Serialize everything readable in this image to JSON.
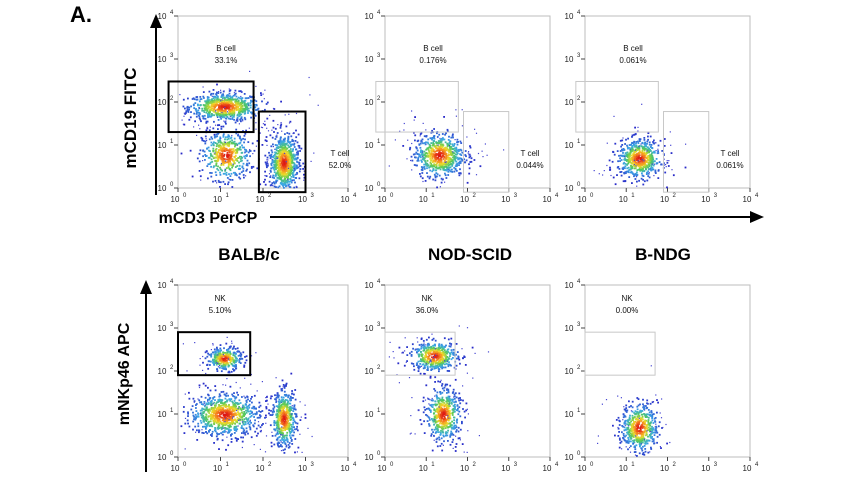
{
  "figure_label": "A.",
  "columns": [
    "BALB/c",
    "NOD-SCID",
    "B-NDG"
  ],
  "axis_labels": {
    "top_y": "mCD19 FITC",
    "top_x": "mCD3 PerCP",
    "bottom_y": "mNKp46 APC"
  },
  "tick_labels": {
    "bases": [
      "10",
      "10",
      "10",
      "10",
      "10"
    ],
    "exponents": [
      "0",
      "1",
      "2",
      "3",
      "4"
    ]
  },
  "gate_labels": {
    "b_cell": "B cell",
    "t_cell": "T cell",
    "nk": "NK"
  },
  "chart_data": [
    {
      "type": "scatter",
      "row": "top",
      "column": "BALB/c",
      "xscale": "log",
      "yscale": "log",
      "xlim": [
        1,
        10000
      ],
      "ylim": [
        1,
        10000
      ],
      "gates": [
        {
          "label": "B cell",
          "percent": "33.1%",
          "x": [
            0.6,
            60
          ],
          "y": [
            20,
            300
          ],
          "emphasis": "bold"
        },
        {
          "label": "T cell",
          "percent": "52.0%",
          "x": [
            80,
            1000
          ],
          "y": [
            0.8,
            60
          ],
          "emphasis": "bold"
        }
      ],
      "clusters": [
        {
          "x": 12,
          "y": 80,
          "sx": 0.42,
          "sy": 0.16,
          "n": 700
        },
        {
          "x": 13,
          "y": 6,
          "sx": 0.28,
          "sy": 0.28,
          "n": 450
        },
        {
          "x": 300,
          "y": 4,
          "sx": 0.17,
          "sy": 0.33,
          "n": 750
        }
      ]
    },
    {
      "type": "scatter",
      "row": "top",
      "column": "NOD-SCID",
      "xscale": "log",
      "yscale": "log",
      "xlim": [
        1,
        10000
      ],
      "ylim": [
        1,
        10000
      ],
      "gates": [
        {
          "label": "B cell",
          "percent": "0.176%",
          "x": [
            0.6,
            60
          ],
          "y": [
            20,
            300
          ],
          "emphasis": "faint"
        },
        {
          "label": "T cell",
          "percent": "0.044%",
          "x": [
            80,
            1000
          ],
          "y": [
            0.8,
            60
          ],
          "emphasis": "faint"
        }
      ],
      "clusters": [
        {
          "x": 20,
          "y": 6,
          "sx": 0.3,
          "sy": 0.25,
          "n": 650
        }
      ]
    },
    {
      "type": "scatter",
      "row": "top",
      "column": "B-NDG",
      "xscale": "log",
      "yscale": "log",
      "xlim": [
        1,
        10000
      ],
      "ylim": [
        1,
        10000
      ],
      "gates": [
        {
          "label": "B cell",
          "percent": "0.061%",
          "x": [
            0.6,
            60
          ],
          "y": [
            20,
            300
          ],
          "emphasis": "faint"
        },
        {
          "label": "T cell",
          "percent": "0.061%",
          "x": [
            80,
            1000
          ],
          "y": [
            0.8,
            60
          ],
          "emphasis": "faint"
        }
      ],
      "clusters": [
        {
          "x": 20,
          "y": 5,
          "sx": 0.26,
          "sy": 0.22,
          "n": 600
        }
      ]
    },
    {
      "type": "scatter",
      "row": "bottom",
      "column": "BALB/c",
      "xscale": "log",
      "yscale": "log",
      "xlim": [
        1,
        10000
      ],
      "ylim": [
        1,
        10000
      ],
      "gates": [
        {
          "label": "NK",
          "percent": "5.10%",
          "x": [
            1,
            50
          ],
          "y": [
            80,
            800
          ],
          "emphasis": "bold"
        }
      ],
      "clusters": [
        {
          "x": 12,
          "y": 200,
          "sx": 0.2,
          "sy": 0.13,
          "n": 300
        },
        {
          "x": 12,
          "y": 10,
          "sx": 0.4,
          "sy": 0.24,
          "n": 800
        },
        {
          "x": 300,
          "y": 8,
          "sx": 0.14,
          "sy": 0.32,
          "n": 500
        }
      ]
    },
    {
      "type": "scatter",
      "row": "bottom",
      "column": "NOD-SCID",
      "xscale": "log",
      "yscale": "log",
      "xlim": [
        1,
        10000
      ],
      "ylim": [
        1,
        10000
      ],
      "gates": [
        {
          "label": "NK",
          "percent": "36.0%",
          "x": [
            1,
            50
          ],
          "y": [
            80,
            800
          ],
          "emphasis": "faint"
        }
      ],
      "clusters": [
        {
          "x": 15,
          "y": 230,
          "sx": 0.28,
          "sy": 0.17,
          "n": 450
        },
        {
          "x": 25,
          "y": 10,
          "sx": 0.2,
          "sy": 0.3,
          "n": 500
        }
      ]
    },
    {
      "type": "scatter",
      "row": "bottom",
      "column": "B-NDG",
      "xscale": "log",
      "yscale": "log",
      "xlim": [
        1,
        10000
      ],
      "ylim": [
        1,
        10000
      ],
      "gates": [
        {
          "label": "NK",
          "percent": "0.00%",
          "x": [
            1,
            50
          ],
          "y": [
            80,
            800
          ],
          "emphasis": "faint"
        }
      ],
      "clusters": [
        {
          "x": 20,
          "y": 5,
          "sx": 0.22,
          "sy": 0.27,
          "n": 500
        }
      ]
    }
  ]
}
